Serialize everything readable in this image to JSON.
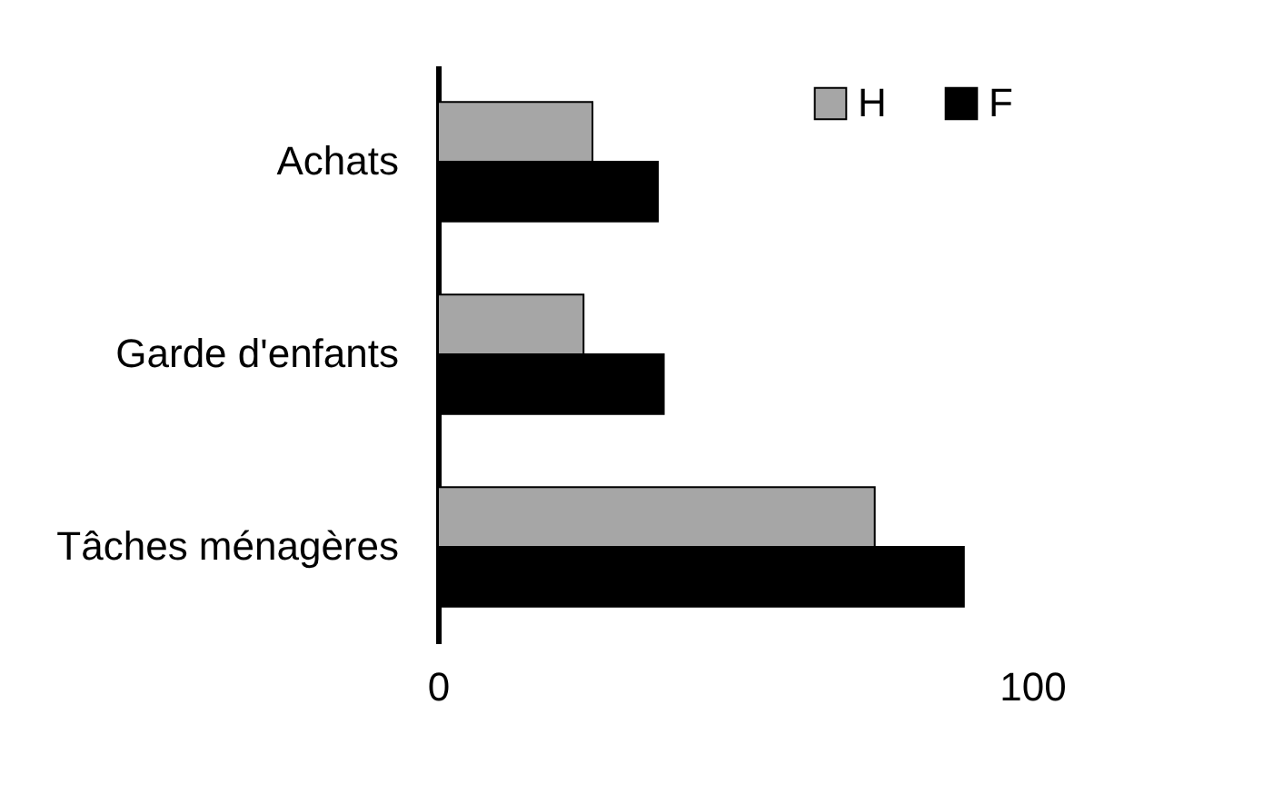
{
  "chart_data": {
    "type": "bar",
    "orientation": "horizontal",
    "categories": [
      "Achats",
      "Garde d'enfants",
      "Tâches ménagères"
    ],
    "series": [
      {
        "name": "H",
        "color": "#a6a6a6",
        "values": [
          26,
          24.5,
          73.5
        ]
      },
      {
        "name": "F",
        "color": "#000000",
        "values": [
          37,
          38,
          88.5
        ]
      }
    ],
    "xlim": [
      0,
      100
    ],
    "xticks": [
      0,
      100
    ],
    "grid": false,
    "legend": "top right"
  }
}
